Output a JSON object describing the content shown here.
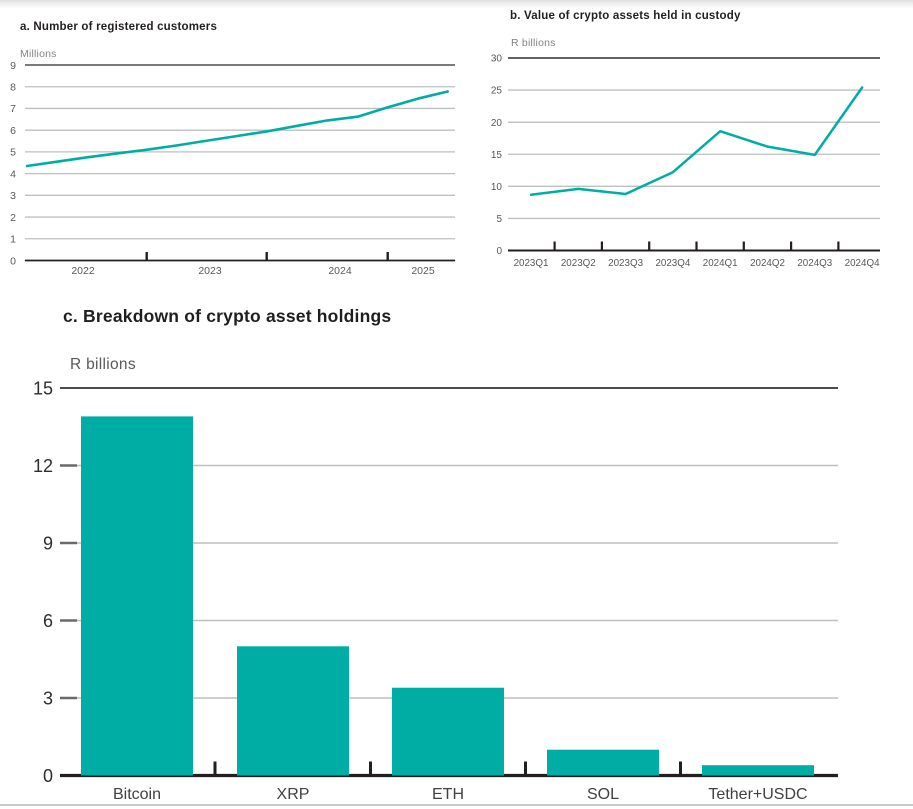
{
  "page": {
    "description": "Three-panel statistics figure on crypto asset custody",
    "background": "#ffffff"
  },
  "colors": {
    "accent": "#00ADA4",
    "grid": "#bdbfc1",
    "top_rule": "#4d4d4f",
    "axis_dark": "#231f20",
    "label_gray": "#58595b",
    "unit_gray": "#808285",
    "title_black": "#231f20"
  },
  "chart_data": [
    {
      "id": "a",
      "type": "line",
      "title": "a. Number of registered customers",
      "unit_label": "Millions",
      "ylabel": "Millions",
      "ylim": [
        0,
        9
      ],
      "y_ticks": [
        0,
        1,
        2,
        3,
        4,
        5,
        6,
        7,
        8,
        9
      ],
      "x_tick_labels": [
        "2022",
        "2023",
        "2024",
        "2025"
      ],
      "x": [
        2022.0,
        2022.25,
        2022.5,
        2022.75,
        2023.0,
        2023.25,
        2023.5,
        2023.75,
        2024.0,
        2024.25,
        2024.5,
        2024.75,
        2025.0,
        2025.25,
        2025.5
      ],
      "values": [
        4.35,
        4.55,
        4.75,
        4.93,
        5.1,
        5.3,
        5.52,
        5.73,
        5.95,
        6.2,
        6.45,
        6.62,
        7.05,
        7.45,
        7.78
      ],
      "grid": true,
      "legend": "none"
    },
    {
      "id": "b",
      "type": "line",
      "title": "b. Value of crypto assets held in custody",
      "unit_label": "R billions",
      "ylabel": "R billions",
      "ylim": [
        0,
        30
      ],
      "y_ticks": [
        0,
        5,
        10,
        15,
        20,
        25,
        30
      ],
      "categories": [
        "2023Q1",
        "2023Q2",
        "2023Q3",
        "2023Q4",
        "2024Q1",
        "2024Q2",
        "2024Q3",
        "2024Q4"
      ],
      "values": [
        8.7,
        9.6,
        8.8,
        12.2,
        18.6,
        16.2,
        14.9,
        25.4
      ],
      "grid": true,
      "legend": "none"
    },
    {
      "id": "c",
      "type": "bar",
      "title": "c. Breakdown of crypto asset holdings",
      "unit_label": "R billions",
      "ylabel": "R billions",
      "ylim": [
        0,
        15
      ],
      "y_ticks": [
        0,
        3,
        6,
        9,
        12,
        15
      ],
      "categories": [
        "Bitcoin",
        "XRP",
        "ETH",
        "SOL",
        "Tether+USDC"
      ],
      "values": [
        13.9,
        5.0,
        3.4,
        1.0,
        0.4
      ],
      "grid": true,
      "legend": "none"
    }
  ]
}
